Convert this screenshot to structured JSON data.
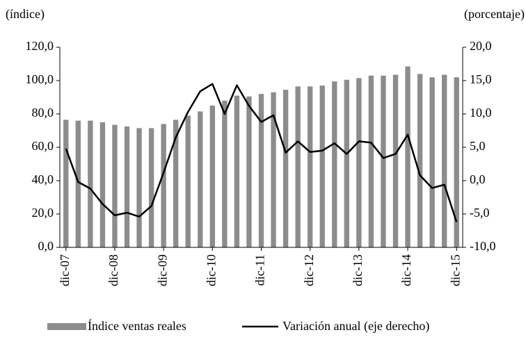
{
  "chart_data": {
    "type": "bar_line",
    "ylabel": "(índice)",
    "y2label": "(porcentaje)",
    "categories": [
      "dic-07",
      null,
      null,
      null,
      "dic-08",
      null,
      null,
      null,
      "dic-09",
      null,
      null,
      null,
      "dic-10",
      null,
      null,
      null,
      "dic-11",
      null,
      null,
      null,
      "dic-12",
      null,
      null,
      null,
      "dic-13",
      null,
      null,
      null,
      "dic-14",
      null,
      null,
      null,
      "dic-15"
    ],
    "series": [
      {
        "name": "Índice ventas reales",
        "color": "#8c8c8c",
        "values": [
          76.5,
          76,
          76,
          75,
          73.5,
          72.5,
          71.5,
          71.5,
          74,
          76.5,
          79,
          81.5,
          85,
          88,
          91,
          90.5,
          92,
          93,
          94.5,
          96.5,
          96.5,
          97,
          99.5,
          100.5,
          101.5,
          103,
          103,
          103.5,
          108.5,
          104,
          102,
          103.5,
          102
        ]
      },
      {
        "name": "Variación anual (eje derecho)",
        "color": "#000000",
        "axis": "y2",
        "values": [
          4.8,
          -0.2,
          -1.2,
          -3.5,
          -5.2,
          -4.8,
          -5.4,
          -3.8,
          1.2,
          6.5,
          10.3,
          13.4,
          14.5,
          10,
          14.3,
          11.2,
          8.8,
          9.8,
          4.2,
          5.9,
          4.3,
          4.5,
          5.6,
          4.0,
          5.9,
          5.7,
          3.4,
          4.0,
          6.9,
          0.8,
          -1.1,
          -0.6,
          -6.2
        ]
      }
    ],
    "ylim": [
      0,
      120
    ],
    "yticks": [
      {
        "value": 0,
        "label": "0,0"
      },
      {
        "value": 20,
        "label": "20,0"
      },
      {
        "value": 40,
        "label": "40,0"
      },
      {
        "value": 60,
        "label": "60,0"
      },
      {
        "value": 80,
        "label": "80,0"
      },
      {
        "value": 100,
        "label": "100,0"
      },
      {
        "value": 120,
        "label": "120,0"
      }
    ],
    "y2lim": [
      -10,
      20
    ],
    "y2ticks": [
      {
        "value": -10,
        "label": "-10,0"
      },
      {
        "value": -5,
        "label": "-5,0"
      },
      {
        "value": 0,
        "label": "0,0"
      },
      {
        "value": 5,
        "label": "5,0"
      },
      {
        "value": 10,
        "label": "10,0"
      },
      {
        "value": 15,
        "label": "15,0"
      },
      {
        "value": 20,
        "label": "20,0"
      }
    ],
    "grid": false
  }
}
